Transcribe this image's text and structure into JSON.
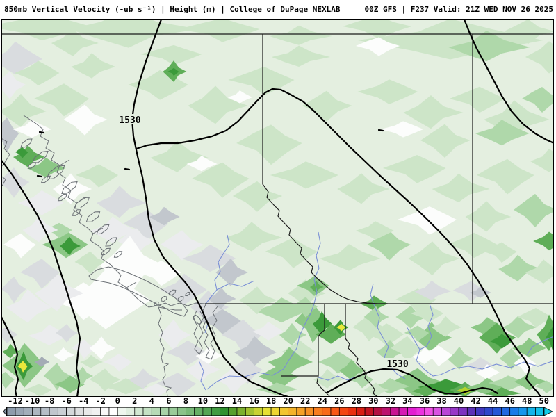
{
  "header": {
    "title_left": "850mb Vertical Velocity (-ub s⁻¹) | Height (m) | College of DuPage NEXLAB",
    "title_right": "00Z GFS | F237 Valid: 21Z WED NOV 26 2025"
  },
  "map": {
    "contour_labels": [
      "1530",
      "1530"
    ],
    "field": "850mb vertical velocity shaded, height contours",
    "region": "Pacific Northwest / British Columbia"
  },
  "colorbar": {
    "tick_labels": [
      "-12",
      "-10",
      "-8",
      "-6",
      "-4",
      "-2",
      "0",
      "2",
      "4",
      "6",
      "8",
      "10",
      "12",
      "14",
      "16",
      "18",
      "20",
      "22",
      "24",
      "26",
      "28",
      "30",
      "32",
      "34",
      "36",
      "38",
      "40",
      "42",
      "44",
      "46",
      "48",
      "50"
    ],
    "tick_values": [
      -12,
      -10,
      -8,
      -6,
      -4,
      -2,
      0,
      2,
      4,
      6,
      8,
      10,
      12,
      14,
      16,
      18,
      20,
      22,
      24,
      26,
      28,
      30,
      32,
      34,
      36,
      38,
      40,
      42,
      44,
      46,
      48,
      50
    ],
    "min_value": -13,
    "max_value": 50,
    "arrow_left_color": "#8494a6",
    "arrow_right_color": "#10cce8",
    "cell_colors": [
      "#8e9cac",
      "#98a5b3",
      "#a2aeba",
      "#acb6c0",
      "#b6bec7",
      "#c0c6cd",
      "#cacfd4",
      "#d4d8da",
      "#dee0e1",
      "#e8e9e9",
      "#f0f1f1",
      "#f8f8f8",
      "#ffffff",
      "#eef6ee",
      "#e0efe0",
      "#d2e8d2",
      "#c4e1c4",
      "#b6dab6",
      "#a8d3a8",
      "#99cb99",
      "#8ac38a",
      "#78b978",
      "#66af66",
      "#54a554",
      "#429b42",
      "#309130",
      "#569f2c",
      "#7cb02e",
      "#a2c130",
      "#c8d232",
      "#e6e034",
      "#eed632",
      "#f1c52e",
      "#f3b32a",
      "#f5a126",
      "#f68f22",
      "#f77d1e",
      "#f86b1a",
      "#f95916",
      "#f34512",
      "#e93010",
      "#d81e14",
      "#c31322",
      "#b30f44",
      "#bb126e",
      "#c81592",
      "#d519b4",
      "#e21ed2",
      "#ec32e0",
      "#f050e6",
      "#d952e2",
      "#b846d6",
      "#9838c8",
      "#7c32c0",
      "#5c32b6",
      "#4038be",
      "#3046ca",
      "#2656d6",
      "#2068e0",
      "#1c7ce8",
      "#1896ec",
      "#14b4ea",
      "#12c0ea"
    ]
  },
  "colors": {
    "background_light_green": "#e4efe0",
    "height_contour": "#000000",
    "political_border": "#1a1a1a",
    "coastline": "#6a6f74",
    "river": "#7a8fd6",
    "max_green": "#237f28",
    "yellow_spot": "#e9e73c"
  }
}
